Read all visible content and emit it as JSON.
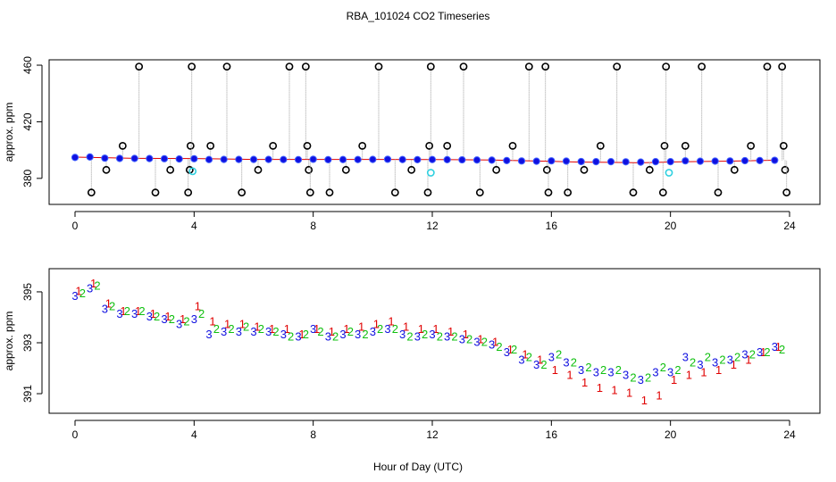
{
  "title": "RBA_101024  CO2 Timeseries",
  "xlabel": "Hour of Day (UTC)",
  "chart_data": [
    {
      "type": "scatter",
      "ylabel": "approx. ppm",
      "xlim": [
        -0.87,
        25.02
      ],
      "ylim": [
        361.6,
        463.8
      ],
      "xticks": [
        0,
        4,
        8,
        12,
        16,
        20,
        24
      ],
      "yticks": [
        380,
        420,
        460
      ],
      "series": [
        {
          "marker": "line",
          "color": "#e00000",
          "x": [
            0,
            2,
            4,
            6,
            8,
            10,
            12,
            14,
            16,
            17,
            18,
            19,
            20,
            22,
            23.5
          ],
          "values": [
            395,
            394.2,
            394,
            393.4,
            393.4,
            393.4,
            393.3,
            393,
            392,
            391.5,
            391.3,
            391.0,
            391.6,
            392.2,
            392.8
          ]
        },
        {
          "marker": "dot",
          "color": "#1010e0",
          "x": [
            0,
            0.5,
            1,
            1.5,
            2,
            2.5,
            3,
            3.5,
            4,
            4.5,
            5,
            5.5,
            6,
            6.5,
            7,
            7.5,
            8,
            8.5,
            9,
            9.5,
            10,
            10.5,
            11,
            11.5,
            12,
            12.5,
            13,
            13.5,
            14,
            14.5,
            15,
            15.5,
            16,
            16.5,
            17,
            17.5,
            18,
            18.5,
            19,
            19.5,
            20,
            20.5,
            21,
            21.5,
            22,
            22.5,
            23,
            23.5
          ],
          "values": [
            394.8,
            395.1,
            394.3,
            394.1,
            394.1,
            394.0,
            393.9,
            393.7,
            393.9,
            393.3,
            393.4,
            393.4,
            393.4,
            393.4,
            393.3,
            393.2,
            393.5,
            393.2,
            393.3,
            393.3,
            393.4,
            393.5,
            393.3,
            393.2,
            393.3,
            393.2,
            393.1,
            393.0,
            392.9,
            392.6,
            392.3,
            392.1,
            392.4,
            392.2,
            391.9,
            391.8,
            391.8,
            391.7,
            391.5,
            391.8,
            391.8,
            392.4,
            392.1,
            392.2,
            392.3,
            392.5,
            392.6,
            392.8
          ]
        },
        {
          "marker": "circle",
          "color": "#000000",
          "stem_color": "#a0a0a0",
          "x": [
            0.55,
            1.05,
            1.6,
            2.15,
            2.7,
            3.2,
            3.8,
            3.85,
            3.88,
            3.92,
            4.55,
            5.1,
            5.6,
            6.15,
            6.65,
            7.2,
            7.75,
            7.8,
            7.85,
            7.9,
            8.55,
            9.1,
            9.65,
            10.2,
            10.75,
            11.3,
            11.85,
            11.9,
            11.95,
            12.5,
            13.05,
            13.6,
            14.15,
            14.7,
            15.25,
            15.8,
            15.85,
            15.9,
            16.55,
            17.1,
            17.65,
            18.2,
            18.75,
            19.3,
            19.75,
            19.8,
            19.85,
            20.5,
            21.05,
            21.6,
            22.15,
            22.7,
            23.25,
            23.75,
            23.8,
            23.85,
            23.9
          ],
          "values": [
            370,
            386,
            403,
            459,
            370,
            386,
            370,
            386,
            403,
            459,
            403,
            459,
            370,
            386,
            403,
            459,
            459,
            403,
            386,
            370,
            370,
            386,
            403,
            459,
            370,
            386,
            370,
            403,
            459,
            403,
            459,
            370,
            386,
            403,
            459,
            459,
            386,
            370,
            370,
            386,
            403,
            459,
            370,
            386,
            370,
            403,
            459,
            403,
            459,
            370,
            386,
            403,
            459,
            459,
            403,
            386,
            370
          ]
        },
        {
          "marker": "circle",
          "color": "#30d0e0",
          "x": [
            3.95,
            11.95,
            19.95
          ],
          "values": [
            385,
            384,
            384
          ]
        }
      ]
    },
    {
      "type": "scatter",
      "ylabel": "approx. ppm",
      "xlim": [
        -0.87,
        25.02
      ],
      "ylim": [
        390.23,
        395.91
      ],
      "xticks": [
        0,
        4,
        8,
        12,
        16,
        20,
        24
      ],
      "yticks": [
        391,
        393,
        395
      ],
      "series": [
        {
          "marker": "text",
          "symbol": "1",
          "color": "#e00000",
          "x": [
            0.12,
            0.62,
            1.12,
            1.62,
            2.12,
            2.62,
            3.12,
            3.62,
            4.12,
            4.62,
            5.12,
            5.62,
            6.12,
            6.62,
            7.12,
            7.62,
            8.12,
            8.62,
            9.12,
            9.62,
            10.12,
            10.62,
            11.12,
            11.62,
            12.12,
            12.62,
            13.12,
            13.62,
            14.12,
            14.62,
            15.12,
            15.62,
            16.12,
            16.62,
            17.12,
            17.62,
            18.12,
            18.62,
            19.12,
            19.62,
            20.12,
            20.62,
            21.12,
            21.62,
            22.12,
            22.62,
            23.12,
            23.62
          ],
          "values": [
            395.0,
            395.3,
            394.5,
            394.2,
            394.2,
            394.1,
            394.0,
            393.9,
            394.4,
            393.8,
            393.7,
            393.7,
            393.6,
            393.5,
            393.5,
            393.3,
            393.5,
            393.4,
            393.5,
            393.6,
            393.7,
            393.8,
            393.6,
            393.5,
            393.5,
            393.4,
            393.3,
            393.1,
            393.0,
            392.7,
            392.5,
            392.3,
            391.9,
            391.7,
            391.4,
            391.2,
            391.1,
            391.0,
            390.7,
            390.9,
            391.5,
            391.7,
            391.8,
            391.9,
            392.1,
            392.3,
            392.6,
            392.8
          ]
        },
        {
          "marker": "text",
          "symbol": "2",
          "color": "#10c010",
          "x": [
            0.25,
            0.75,
            1.25,
            1.75,
            2.25,
            2.75,
            3.25,
            3.75,
            4.25,
            4.75,
            5.25,
            5.75,
            6.25,
            6.75,
            7.25,
            7.75,
            8.25,
            8.75,
            9.25,
            9.75,
            10.25,
            10.75,
            11.25,
            11.75,
            12.25,
            12.75,
            13.25,
            13.75,
            14.25,
            14.75,
            15.25,
            15.75,
            16.25,
            16.75,
            17.25,
            17.75,
            18.25,
            18.75,
            19.25,
            19.75,
            20.25,
            20.75,
            21.25,
            21.75,
            22.25,
            22.75,
            23.25,
            23.75
          ],
          "values": [
            394.9,
            395.2,
            394.4,
            394.2,
            394.2,
            394.0,
            393.9,
            393.8,
            394.1,
            393.5,
            393.5,
            393.6,
            393.5,
            393.4,
            393.2,
            393.3,
            393.4,
            393.2,
            393.4,
            393.3,
            393.5,
            393.5,
            393.2,
            393.3,
            393.2,
            393.2,
            393.1,
            393.0,
            392.8,
            392.7,
            392.4,
            392.1,
            392.5,
            392.2,
            392.0,
            391.9,
            391.9,
            391.6,
            391.6,
            392.0,
            391.9,
            392.2,
            392.4,
            392.3,
            392.4,
            392.5,
            392.6,
            392.7
          ]
        },
        {
          "marker": "text",
          "symbol": "3",
          "color": "#1010e0",
          "x": [
            0,
            0.5,
            1,
            1.5,
            2,
            2.5,
            3,
            3.5,
            4,
            4.5,
            5,
            5.5,
            6,
            6.5,
            7,
            7.5,
            8,
            8.5,
            9,
            9.5,
            10,
            10.5,
            11,
            11.5,
            12,
            12.5,
            13,
            13.5,
            14,
            14.5,
            15,
            15.5,
            16,
            16.5,
            17,
            17.5,
            18,
            18.5,
            19,
            19.5,
            20,
            20.5,
            21,
            21.5,
            22,
            22.5,
            23,
            23.5
          ],
          "values": [
            394.8,
            395.1,
            394.3,
            394.1,
            394.1,
            394.0,
            393.9,
            393.7,
            393.9,
            393.3,
            393.4,
            393.4,
            393.4,
            393.4,
            393.3,
            393.2,
            393.5,
            393.2,
            393.3,
            393.3,
            393.4,
            393.5,
            393.3,
            393.2,
            393.3,
            393.2,
            393.1,
            393.0,
            392.9,
            392.6,
            392.3,
            392.1,
            392.4,
            392.2,
            391.9,
            391.8,
            391.8,
            391.7,
            391.5,
            391.8,
            391.8,
            392.4,
            392.1,
            392.2,
            392.3,
            392.5,
            392.6,
            392.8
          ]
        }
      ]
    }
  ]
}
